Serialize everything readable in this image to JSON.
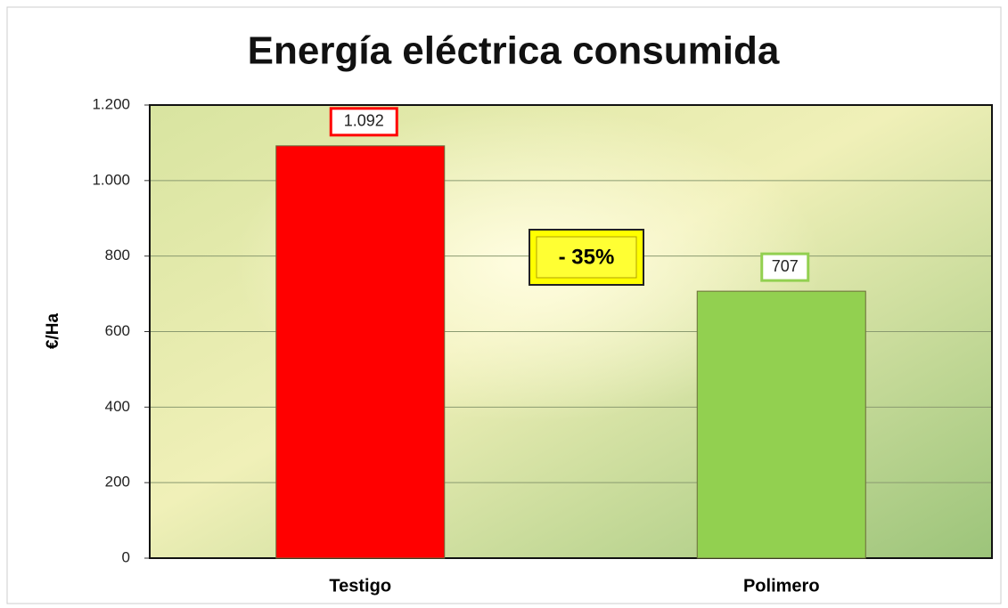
{
  "chart_data": {
    "type": "bar",
    "title": "Energía eléctrica consumida",
    "ylabel": "€/Ha",
    "categories": [
      "Testigo",
      "Polimero"
    ],
    "values": [
      1092,
      707
    ],
    "value_labels": [
      "1.092",
      "707"
    ],
    "colors": [
      "#ff0000",
      "#92d050"
    ],
    "ylim": [
      0,
      1200
    ],
    "yticks": [
      0,
      200,
      400,
      600,
      800,
      {
        "value": 1000,
        "label": "1.000"
      },
      {
        "value": 1200,
        "label": "1.200"
      }
    ],
    "grid": true,
    "annotation": "- 35%"
  }
}
